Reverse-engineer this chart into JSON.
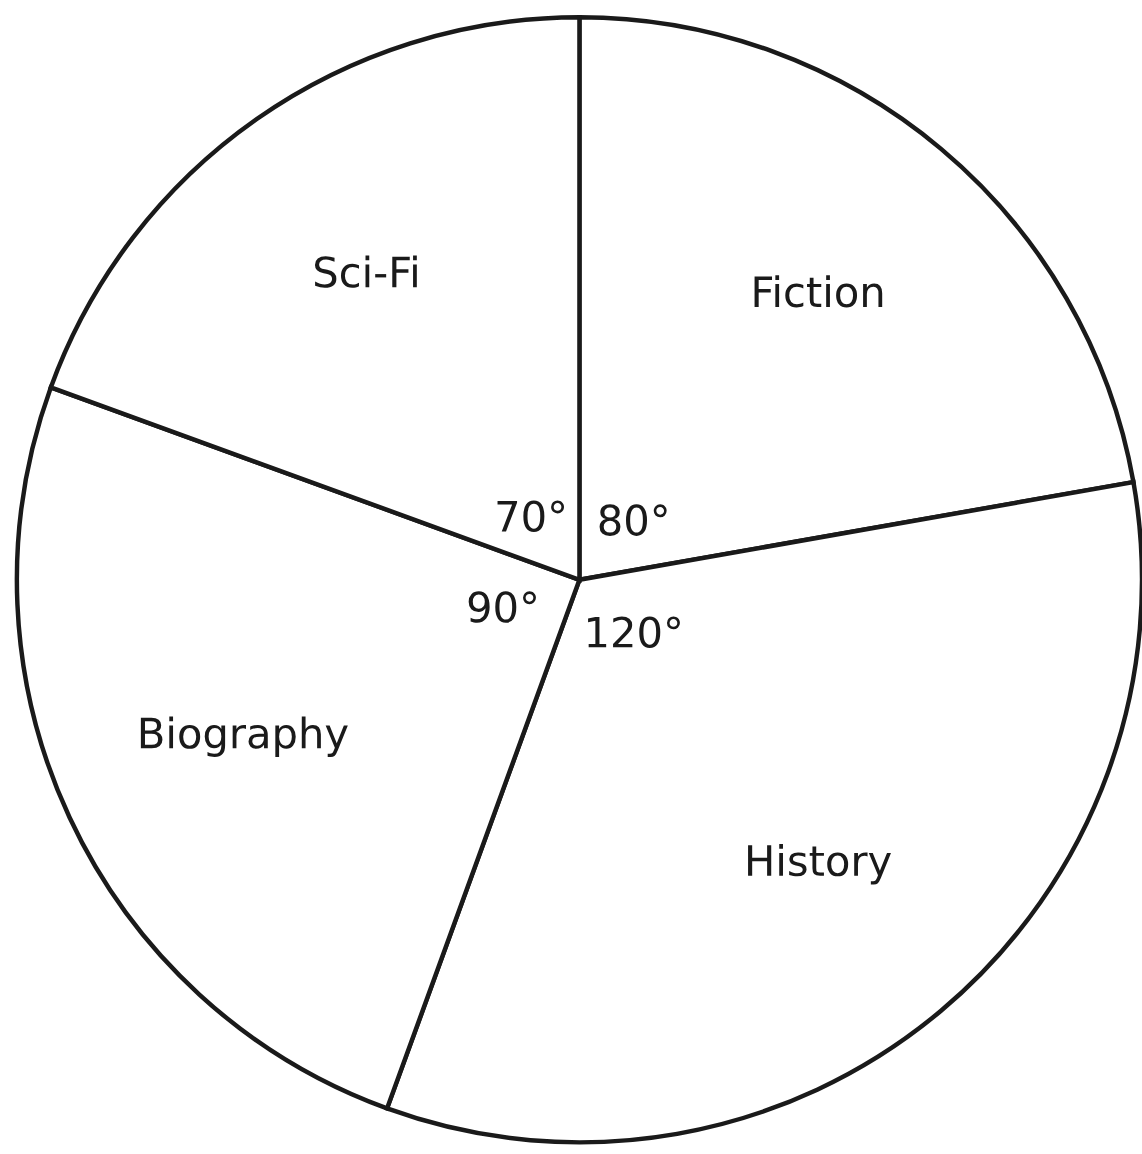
{
  "chart_data": {
    "type": "pie",
    "categories": [
      "Fiction",
      "History",
      "Biography",
      "Sci-Fi"
    ],
    "values": [
      80,
      120,
      90,
      70
    ],
    "value_labels": [
      "80°",
      "120°",
      "90°",
      "70°"
    ],
    "colors": [
      "#ffffff",
      "#ffffff",
      "#ffffff",
      "#ffffff"
    ],
    "legend": false
  }
}
